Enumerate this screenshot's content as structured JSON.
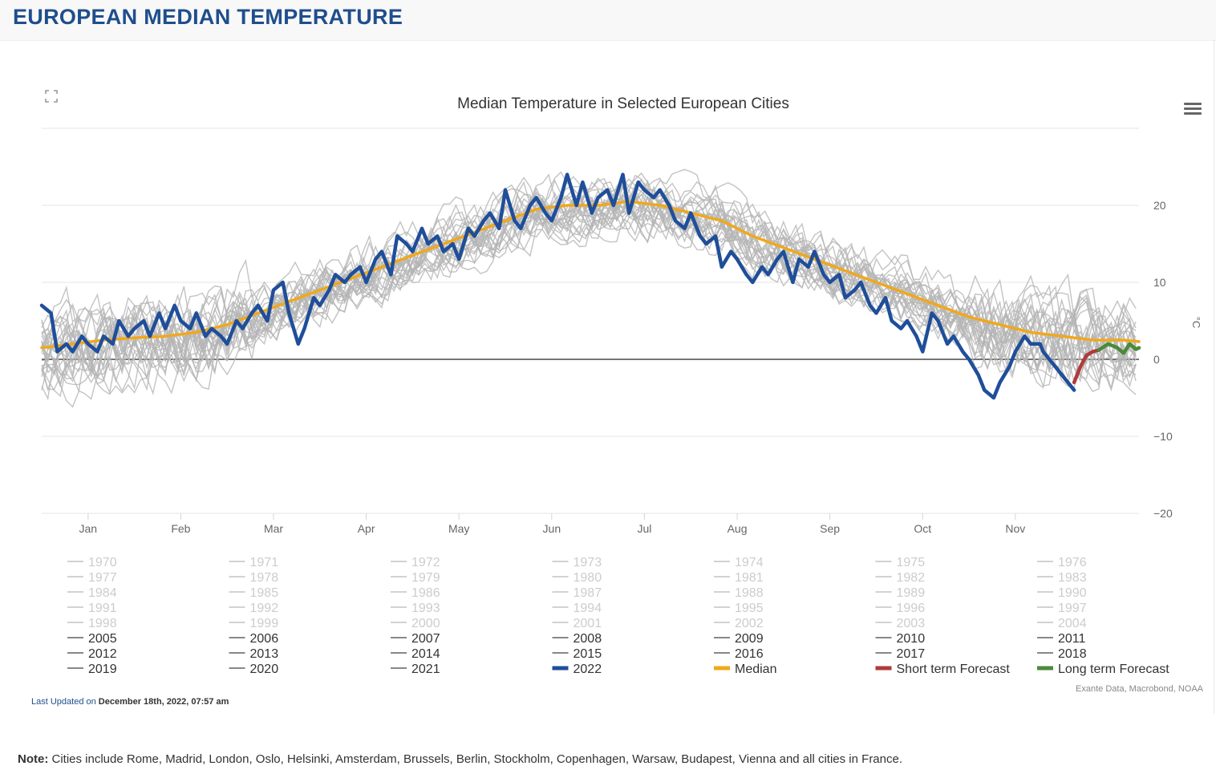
{
  "header": {
    "title": "EUROPEAN MEDIAN TEMPERATURE"
  },
  "icons": {
    "fullscreen": "fullscreen-icon",
    "menu": "hamburger-menu-icon"
  },
  "colors": {
    "history": "#b4b4b4",
    "y2022": "#1f4e9a",
    "median": "#f0a81c",
    "short": "#b03a3a",
    "long": "#4a8a3a",
    "title_blue": "#1f4e8c"
  },
  "chart_data": {
    "type": "line",
    "title": "Median Temperature in Selected European Cities",
    "ylabel": "°C",
    "ylim": [
      -20,
      30
    ],
    "yticks": [
      20,
      10,
      0,
      -10,
      -20
    ],
    "ytick_labels": [
      "20",
      "10",
      "0",
      "−10",
      "−20"
    ],
    "month_labels": [
      "Jan",
      "Feb",
      "Mar",
      "Apr",
      "May",
      "Jun",
      "Jul",
      "Aug",
      "Sep",
      "Oct",
      "Nov"
    ],
    "month_centers_day": [
      15,
      45,
      75,
      105,
      135,
      165,
      195,
      225,
      255,
      285,
      315
    ],
    "x_range_days": [
      0,
      355
    ],
    "source": "Exante Data, Macrobond, NOAA",
    "series": [
      {
        "name": "Median",
        "kind": "median",
        "x": [
          0,
          10,
          20,
          30,
          40,
          50,
          60,
          70,
          80,
          90,
          100,
          110,
          120,
          130,
          140,
          150,
          160,
          170,
          180,
          190,
          200,
          210,
          220,
          230,
          240,
          250,
          260,
          270,
          280,
          290,
          300,
          310,
          320,
          330,
          340,
          350,
          355
        ],
        "values": [
          1.5,
          2,
          2.5,
          2.8,
          3,
          3.5,
          4.5,
          6,
          7.5,
          9,
          10.5,
          12,
          13.5,
          15,
          16.5,
          18,
          19.5,
          20,
          20,
          20.5,
          20,
          19,
          18,
          16,
          14.5,
          13,
          11.5,
          10,
          8.5,
          7,
          5.5,
          4.5,
          3.5,
          3,
          2.5,
          2.5,
          2.3
        ]
      },
      {
        "name": "2022",
        "kind": "y2022",
        "x": [
          0,
          3,
          5,
          8,
          10,
          13,
          15,
          18,
          20,
          23,
          25,
          28,
          30,
          33,
          35,
          38,
          40,
          43,
          45,
          48,
          50,
          53,
          55,
          58,
          60,
          63,
          65,
          68,
          70,
          73,
          75,
          78,
          80,
          83,
          85,
          88,
          90,
          93,
          95,
          98,
          100,
          103,
          105,
          108,
          110,
          113,
          115,
          118,
          120,
          123,
          125,
          128,
          130,
          133,
          135,
          138,
          140,
          143,
          145,
          148,
          150,
          153,
          155,
          158,
          160,
          163,
          165,
          168,
          170,
          173,
          175,
          178,
          180,
          183,
          185,
          188,
          190,
          193,
          195,
          198,
          200,
          203,
          205,
          208,
          210,
          213,
          215,
          218,
          220,
          223,
          225,
          228,
          230,
          233,
          235,
          238,
          240,
          243,
          245,
          248,
          250,
          253,
          255,
          258,
          260,
          263,
          265,
          268,
          270,
          273,
          275,
          278,
          280,
          283,
          285,
          288,
          290,
          293,
          295,
          298,
          300,
          303,
          305,
          308,
          310,
          313,
          315,
          318,
          320,
          323,
          324,
          326,
          328,
          330,
          332,
          334
        ],
        "values": [
          7,
          6,
          1,
          2,
          1,
          3,
          2,
          1,
          3,
          2,
          5,
          3,
          4,
          5,
          3,
          6,
          4,
          7,
          5,
          4,
          6,
          3,
          4,
          3,
          2,
          5,
          4,
          6,
          7,
          5,
          9,
          10,
          6,
          2,
          4,
          8,
          7,
          9,
          11,
          10,
          11,
          12,
          10,
          13,
          14,
          11,
          16,
          15,
          14,
          17,
          15,
          16,
          14,
          15,
          13,
          17,
          16,
          18,
          19,
          17,
          22,
          18,
          17,
          20,
          21,
          19,
          18,
          21,
          24,
          20,
          23,
          19,
          21,
          22,
          20,
          24,
          19,
          23,
          22,
          21,
          22,
          20,
          18,
          17,
          19,
          16,
          15,
          16,
          12,
          14,
          13,
          11,
          10,
          12,
          11,
          13,
          14,
          10,
          13,
          12,
          14,
          11,
          10,
          11,
          8,
          9,
          10,
          7,
          6,
          8,
          5,
          4,
          5,
          3,
          1,
          6,
          5,
          2,
          3,
          1,
          0,
          -2,
          -4,
          -5,
          -3,
          -1,
          1,
          3,
          2,
          2,
          1,
          0,
          -1,
          -2,
          -3,
          -4
        ]
      },
      {
        "name": "Short term Forecast",
        "kind": "short",
        "x": [
          334,
          336,
          338,
          340,
          342
        ],
        "values": [
          -3,
          -1,
          0.5,
          1,
          1.2
        ]
      },
      {
        "name": "Long term Forecast",
        "kind": "long",
        "x": [
          342,
          345,
          348,
          350,
          352,
          354,
          355
        ],
        "values": [
          1.2,
          2,
          1.5,
          0.8,
          2,
          1.3,
          1.5
        ]
      }
    ],
    "legend": [
      "1970",
      "1971",
      "1972",
      "1973",
      "1974",
      "1975",
      "1976",
      "1977",
      "1978",
      "1979",
      "1980",
      "1981",
      "1982",
      "1983",
      "1984",
      "1985",
      "1986",
      "1987",
      "1988",
      "1989",
      "1990",
      "1991",
      "1992",
      "1993",
      "1994",
      "1995",
      "1996",
      "1997",
      "1998",
      "1999",
      "2000",
      "2001",
      "2002",
      "2003",
      "2004",
      "2005",
      "2006",
      "2007",
      "2008",
      "2009",
      "2010",
      "2011",
      "2012",
      "2013",
      "2014",
      "2015",
      "2016",
      "2017",
      "2018",
      "2019",
      "2020",
      "2021",
      "2022",
      "Median",
      "Short term Forecast",
      "Long term Forecast"
    ],
    "legend_active_from": 35
  },
  "footer": {
    "updated_prefix": "Last Updated on ",
    "updated_value": "December 18th, 2022, 07:57 am",
    "note_label": "Note:",
    "note_text": " Cities include Rome, Madrid, London, Oslo, Helsinki, Amsterdam, Brussels, Berlin, Stockholm, Copenhagen, Warsaw, Budapest, Vienna and all cities in France."
  }
}
